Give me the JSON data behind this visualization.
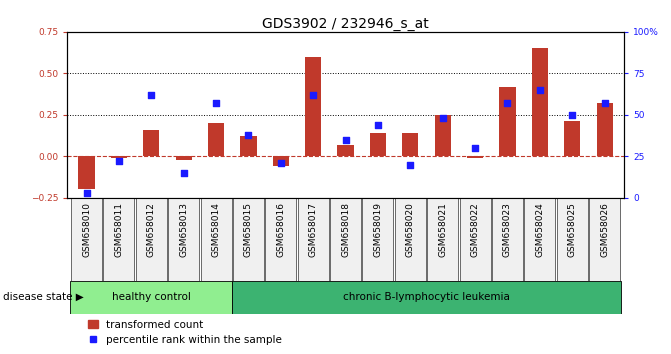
{
  "title": "GDS3902 / 232946_s_at",
  "samples": [
    "GSM658010",
    "GSM658011",
    "GSM658012",
    "GSM658013",
    "GSM658014",
    "GSM658015",
    "GSM658016",
    "GSM658017",
    "GSM658018",
    "GSM658019",
    "GSM658020",
    "GSM658021",
    "GSM658022",
    "GSM658023",
    "GSM658024",
    "GSM658025",
    "GSM658026"
  ],
  "bar_values": [
    -0.2,
    -0.01,
    0.16,
    -0.02,
    0.2,
    0.12,
    -0.06,
    0.6,
    0.07,
    0.14,
    0.14,
    0.25,
    -0.01,
    0.42,
    0.65,
    0.21,
    0.32
  ],
  "scatter_values": [
    3,
    22,
    62,
    15,
    57,
    38,
    21,
    62,
    35,
    44,
    20,
    48,
    30,
    57,
    65,
    50,
    57
  ],
  "bar_color": "#C0392B",
  "scatter_color": "#1a1aff",
  "ylim_left": [
    -0.25,
    0.75
  ],
  "ylim_right": [
    0,
    100
  ],
  "yticks_left": [
    -0.25,
    0.0,
    0.25,
    0.5,
    0.75
  ],
  "yticks_right": [
    0,
    25,
    50,
    75,
    100
  ],
  "yticklabels_right": [
    "0",
    "25",
    "50",
    "75",
    "100%"
  ],
  "hlines": [
    0.25,
    0.5
  ],
  "zero_line_color": "#C0392B",
  "hline_color": "black",
  "healthy_count": 5,
  "group1_label": "healthy control",
  "group2_label": "chronic B-lymphocytic leukemia",
  "group1_color": "#90EE90",
  "group2_color": "#3CB371",
  "disease_state_label": "disease state",
  "legend_bar_label": "transformed count",
  "legend_scatter_label": "percentile rank within the sample",
  "title_fontsize": 10,
  "tick_fontsize": 6.5,
  "label_fontsize": 7.5,
  "bar_width": 0.5,
  "figsize": [
    6.71,
    3.54
  ],
  "dpi": 100,
  "bg_color": "#f0f0f0"
}
